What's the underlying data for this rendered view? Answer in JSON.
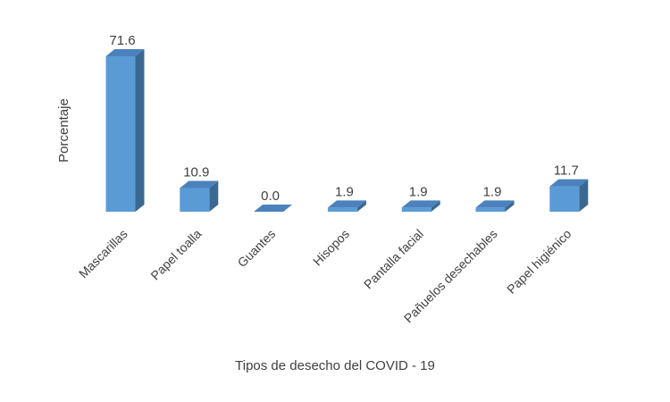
{
  "chart_data": {
    "type": "bar3d",
    "x_label": "Tipos de desecho del COVID - 19",
    "y_label": "Porcentaje",
    "categories": [
      "Mascarillas",
      "Papel toalla",
      "Guantes",
      "Hisopos",
      "Pantalla facial",
      "Pañuelos desechables",
      "Papel higiénico"
    ],
    "values": [
      71.6,
      10.9,
      0.0,
      1.9,
      1.9,
      1.9,
      11.7
    ],
    "value_labels": [
      "71.6",
      "10.9",
      "0.0",
      "1.9",
      "1.9",
      "1.9",
      "11.7"
    ],
    "color": "#5b9bd5"
  }
}
